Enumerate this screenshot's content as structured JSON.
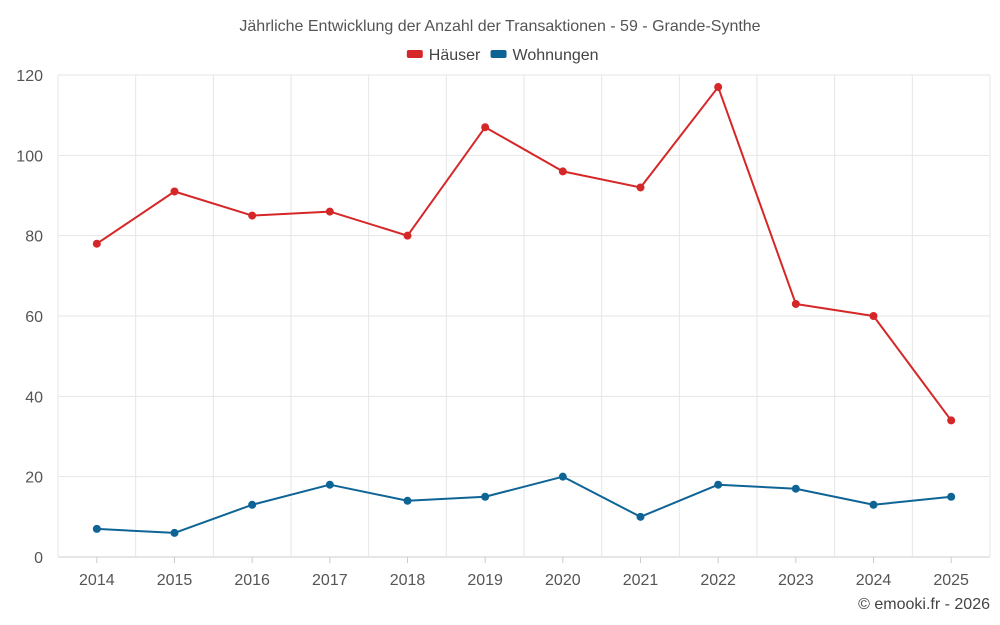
{
  "chart_data": {
    "type": "line",
    "title": "Jährliche Entwicklung der Anzahl der Transaktionen - 59 - Grande-Synthe",
    "categories": [
      "2014",
      "2015",
      "2016",
      "2017",
      "2018",
      "2019",
      "2020",
      "2021",
      "2022",
      "2023",
      "2024",
      "2025"
    ],
    "series": [
      {
        "name": "Häuser",
        "color": "#d62728",
        "values": [
          78,
          91,
          85,
          86,
          80,
          107,
          96,
          92,
          117,
          63,
          60,
          34
        ]
      },
      {
        "name": "Wohnungen",
        "color": "#0f6496",
        "values": [
          7,
          6,
          13,
          18,
          14,
          15,
          20,
          10,
          18,
          17,
          13,
          15
        ]
      }
    ],
    "ylim": [
      0,
      120
    ],
    "yticks": [
      0,
      20,
      40,
      60,
      80,
      100,
      120
    ],
    "xlabel": "",
    "ylabel": "",
    "grid": true,
    "legend_position": "top-center"
  },
  "footer": {
    "credit": "© emooki.fr - 2026"
  }
}
